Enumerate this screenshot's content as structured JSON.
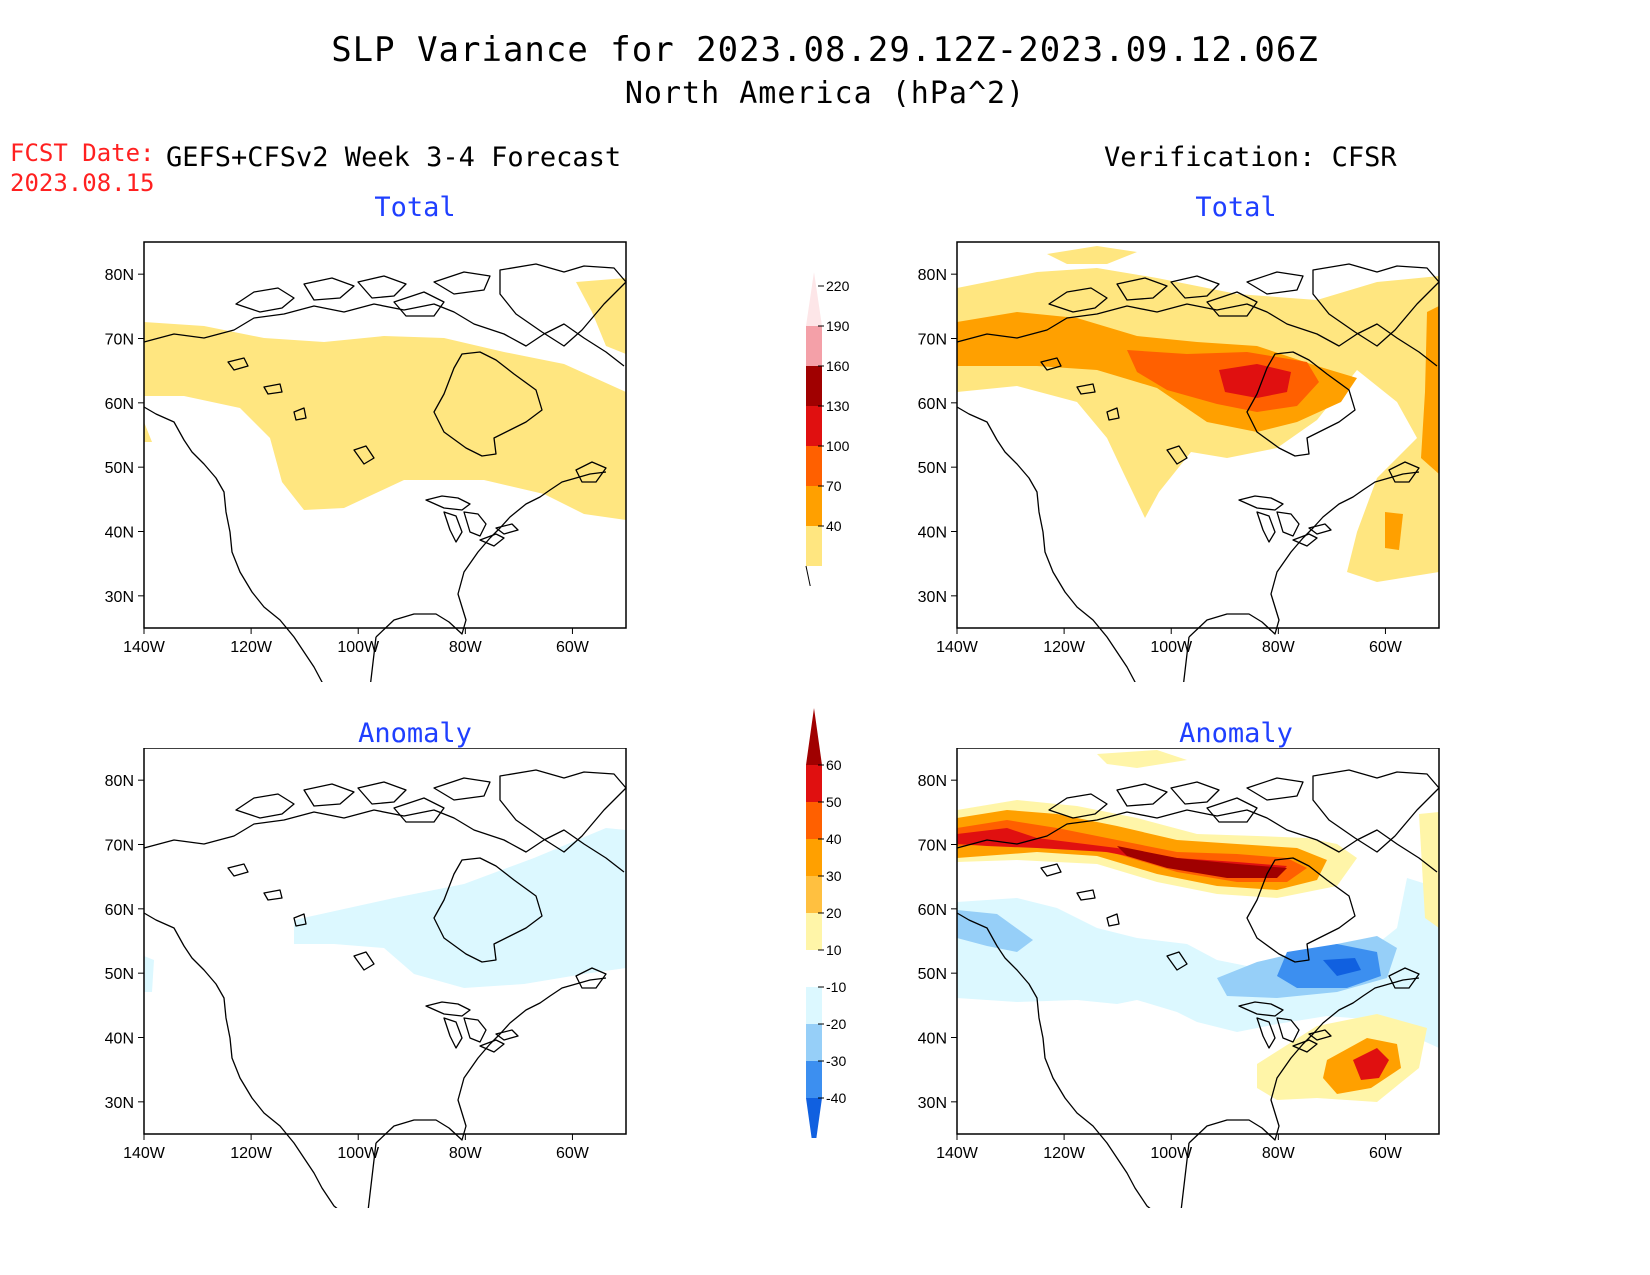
{
  "title": {
    "line1": "SLP Variance for 2023.08.29.12Z-2023.09.12.06Z",
    "line2": "North America (hPa^2)"
  },
  "forecast_date": {
    "label": "FCST Date:",
    "value": "2023.08.15"
  },
  "columns": {
    "left_heading": "GEFS+CFSv2 Week 3-4 Forecast",
    "right_heading": "Verification: CFSR"
  },
  "panels": {
    "top_left_title": "Total",
    "top_right_title": "Total",
    "bottom_left_title": "Anomaly",
    "bottom_right_title": "Anomaly"
  },
  "axes": {
    "lat_ticks": [
      "80N",
      "70N",
      "60N",
      "50N",
      "40N",
      "30N"
    ],
    "lon_ticks": [
      "140W",
      "120W",
      "100W",
      "80W",
      "60W"
    ],
    "lat_values": [
      80,
      70,
      60,
      50,
      40,
      30
    ],
    "lon_values": [
      -140,
      -120,
      -100,
      -80,
      -60
    ],
    "lat_range": [
      25,
      85
    ],
    "lon_range": [
      -140,
      -50
    ]
  },
  "colorbars": {
    "total": {
      "labels": [
        "40",
        "70",
        "100",
        "130",
        "160",
        "190",
        "220"
      ],
      "colors": [
        "#ffe680",
        "#ffa000",
        "#ff6000",
        "#e01010",
        "#a00000",
        "#f4a0a8",
        "#fde6e8"
      ]
    },
    "anomaly": {
      "labels": [
        "-40",
        "-30",
        "-20",
        "-10",
        "10",
        "20",
        "30",
        "40",
        "50",
        "60"
      ],
      "colors": [
        "#1060e0",
        "#3c8ff0",
        "#96cff8",
        "#dcf8ff",
        "#ffffff",
        "#fff5a8",
        "#ffc040",
        "#ffa000",
        "#ff6000",
        "#e01010",
        "#a00000"
      ]
    }
  }
}
